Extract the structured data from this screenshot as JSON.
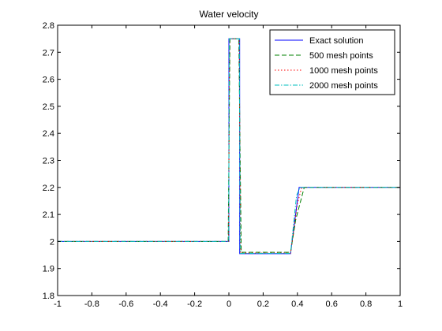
{
  "chart_data": {
    "type": "line",
    "title": "Water velocity",
    "xlabel": "",
    "ylabel": "",
    "xlim": [
      -1,
      1
    ],
    "ylim": [
      1.8,
      2.8
    ],
    "xticks": [
      "-1",
      "-0.8",
      "-0.6",
      "-0.4",
      "-0.2",
      "0",
      "0.2",
      "0.4",
      "0.6",
      "0.8",
      "1"
    ],
    "yticks": [
      "1.8",
      "1.9",
      "2",
      "2.1",
      "2.2",
      "2.3",
      "2.4",
      "2.5",
      "2.6",
      "2.7",
      "2.8"
    ],
    "grid": false,
    "legend_position": "top-right",
    "series": [
      {
        "name": "Exact solution",
        "color": "#0000ff",
        "style": "solid",
        "points": [
          [
            -1,
            2.0
          ],
          [
            0.0,
            2.0
          ],
          [
            0.0,
            2.75
          ],
          [
            0.063,
            2.75
          ],
          [
            0.063,
            1.955
          ],
          [
            0.36,
            1.955
          ],
          [
            0.41,
            2.2
          ],
          [
            1,
            2.2
          ]
        ]
      },
      {
        "name": "500 mesh points",
        "color": "#008000",
        "style": "dashed",
        "points": [
          [
            -1,
            2.0
          ],
          [
            -0.004,
            2.0
          ],
          [
            0.006,
            2.75
          ],
          [
            0.058,
            2.75
          ],
          [
            0.072,
            1.96
          ],
          [
            0.36,
            1.96
          ],
          [
            0.39,
            2.08
          ],
          [
            0.44,
            2.2
          ],
          [
            1,
            2.2
          ]
        ]
      },
      {
        "name": "1000 mesh points",
        "color": "#ff0000",
        "style": "dotted",
        "points": [
          [
            -1,
            2.0
          ],
          [
            -0.002,
            2.0
          ],
          [
            0.004,
            2.75
          ],
          [
            0.06,
            2.75
          ],
          [
            0.068,
            1.957
          ],
          [
            0.36,
            1.957
          ],
          [
            0.4,
            2.14
          ],
          [
            0.425,
            2.2
          ],
          [
            1,
            2.2
          ]
        ]
      },
      {
        "name": "2000 mesh points",
        "color": "#00bfbf",
        "style": "dashdot",
        "points": [
          [
            -1,
            2.0
          ],
          [
            -0.001,
            2.0
          ],
          [
            0.002,
            2.75
          ],
          [
            0.061,
            2.75
          ],
          [
            0.066,
            1.956
          ],
          [
            0.36,
            1.956
          ],
          [
            0.395,
            2.17
          ],
          [
            0.415,
            2.2
          ],
          [
            1,
            2.2
          ]
        ]
      }
    ]
  }
}
